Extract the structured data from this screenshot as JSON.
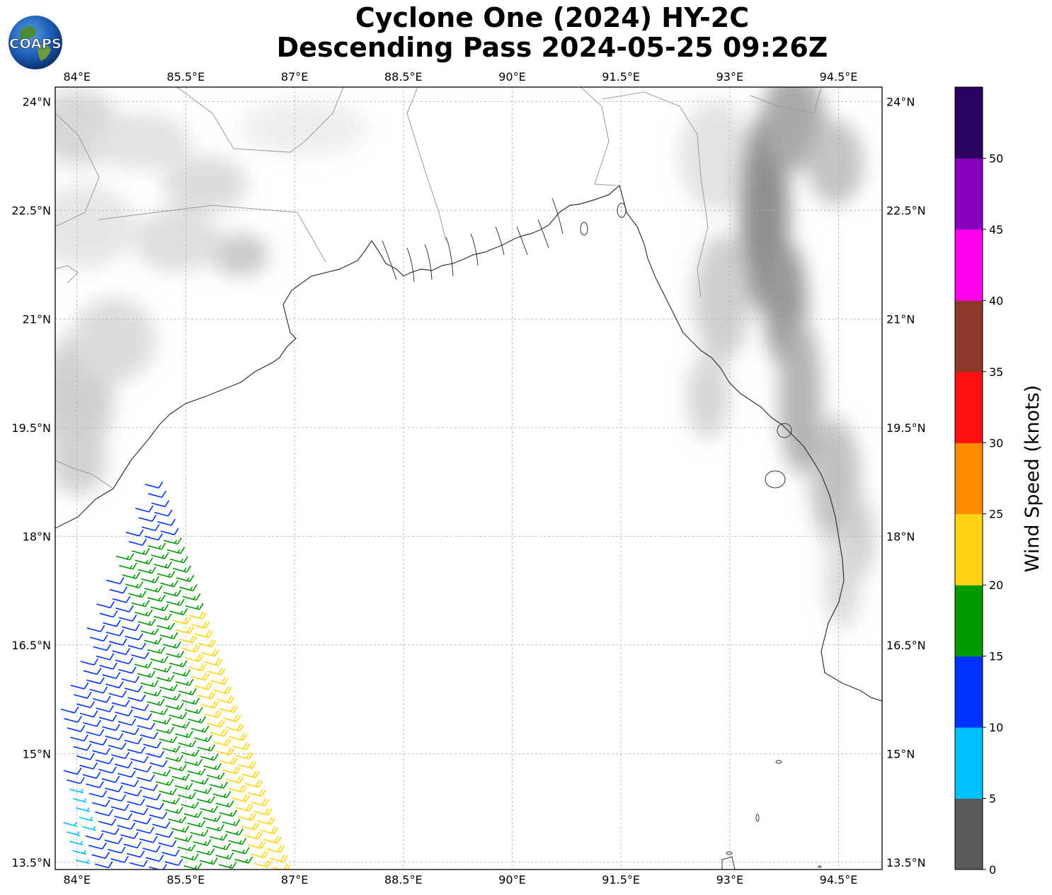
{
  "title": {
    "line1": "Cyclone One (2024) HY-2C",
    "line2": "Descending Pass 2024-05-25 09:26Z"
  },
  "logo": {
    "text": "COAPS",
    "icon": "globe-icon"
  },
  "map": {
    "lon_range": [
      83.7,
      95.1
    ],
    "lat_range": [
      13.4,
      24.2
    ],
    "lon_ticks": [
      84,
      85.5,
      87,
      88.5,
      90,
      91.5,
      93,
      94.5
    ],
    "lat_ticks": [
      13.5,
      15,
      16.5,
      18,
      19.5,
      21,
      22.5,
      24
    ],
    "lon_labels": [
      "84°E",
      "85.5°E",
      "87°E",
      "88.5°E",
      "90°E",
      "91.5°E",
      "93°E",
      "94.5°E"
    ],
    "lat_labels": [
      "13.5°N",
      "15°N",
      "16.5°N",
      "18°N",
      "19.5°N",
      "21°N",
      "22.5°N",
      "24°N"
    ]
  },
  "colorbar": {
    "title": "Wind Speed (knots)",
    "ticks": [
      "0",
      "5",
      "10",
      "15",
      "20",
      "25",
      "30",
      "35",
      "40",
      "45",
      "50"
    ],
    "colors": [
      "#595959",
      "#00bfff",
      "#0033ff",
      "#009900",
      "#ffd411",
      "#ff8c00",
      "#ff1010",
      "#8b3a2a",
      "#ff00ee",
      "#8800bb",
      "#2a0060"
    ]
  },
  "chart_data": {
    "type": "wind-barbs",
    "units": "knots",
    "direction_note": "winds mostly from the west-southwest",
    "regions": [
      {
        "name": "coastal edge",
        "speed_range": [
          5,
          10
        ],
        "color": "#00bfff"
      },
      {
        "name": "western swath",
        "speed_range": [
          10,
          15
        ],
        "color": "#0033ff"
      },
      {
        "name": "central swath",
        "speed_range": [
          15,
          20
        ],
        "color": "#009900"
      },
      {
        "name": "eastern edge",
        "speed_range": [
          20,
          25
        ],
        "color": "#ffd411"
      }
    ]
  }
}
